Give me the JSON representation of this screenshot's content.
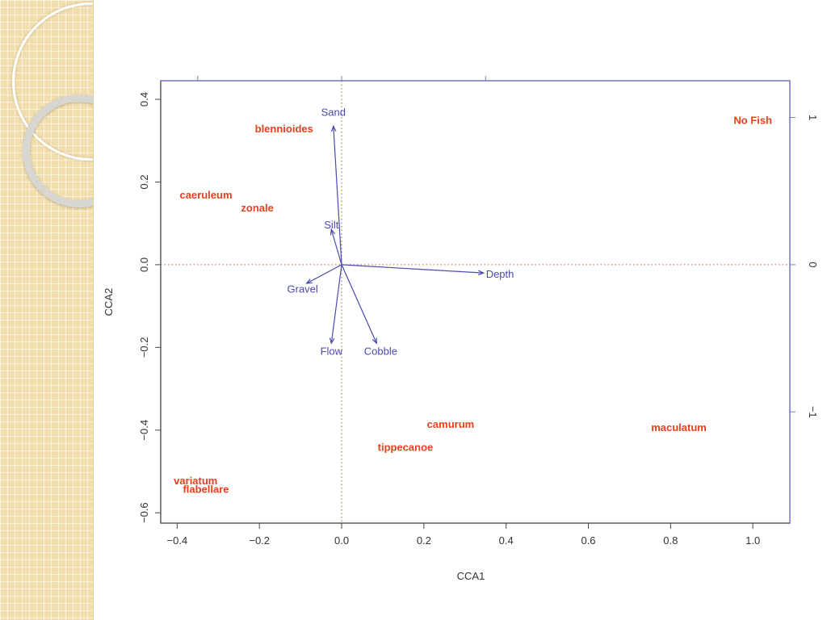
{
  "chart_data": {
    "type": "scatter",
    "xlabel": "CCA1",
    "ylabel": "CCA2",
    "xlim": [
      -0.44,
      1.09
    ],
    "ylim": [
      -0.625,
      0.445
    ],
    "x_ticks": [
      -0.4,
      -0.2,
      0.0,
      0.2,
      0.4,
      0.6,
      0.8,
      1.0
    ],
    "x_tick_labels": [
      "−0.4",
      "−0.2",
      "0.0",
      "0.2",
      "0.4",
      "0.6",
      "0.8",
      "1.0"
    ],
    "y_ticks": [
      0.4,
      0.2,
      0.0,
      -0.2,
      -0.4,
      -0.6
    ],
    "y_tick_labels": [
      "0.4",
      "0.2",
      "0.0",
      "−0.2",
      "−0.4",
      "−0.6"
    ],
    "right_axis_ticks": [
      1,
      0,
      -1
    ],
    "right_axis_tick_labels": [
      "1",
      "0",
      "−1"
    ],
    "right_axis_scale": 0.356,
    "top_axis_ticks": [
      -0.35,
      -0.0,
      0.35
    ],
    "reference_lines": {
      "x": 0,
      "y": 0,
      "style": "dotted"
    },
    "grid": false,
    "species_color": "#e8401c",
    "vector_color": "#4a4ab0",
    "species": [
      {
        "label": "blennioides",
        "x": -0.14,
        "y": 0.33
      },
      {
        "label": "caeruleum",
        "x": -0.33,
        "y": 0.17
      },
      {
        "label": "zonale",
        "x": -0.205,
        "y": 0.138
      },
      {
        "label": "No Fish",
        "x": 1.0,
        "y": 0.35
      },
      {
        "label": "camurum",
        "x": 0.265,
        "y": -0.385
      },
      {
        "label": "tippecanoe",
        "x": 0.155,
        "y": -0.44
      },
      {
        "label": "maculatum",
        "x": 0.82,
        "y": -0.393
      },
      {
        "label": "variatum",
        "x": -0.355,
        "y": -0.522
      },
      {
        "label": "flabellare",
        "x": -0.33,
        "y": -0.542
      }
    ],
    "vectors": [
      {
        "label": "Sand",
        "x": -0.02,
        "y": 0.335,
        "lx": -0.02,
        "ly": 0.37
      },
      {
        "label": "Silt",
        "x": -0.025,
        "y": 0.085,
        "lx": -0.025,
        "ly": 0.097
      },
      {
        "label": "Gravel",
        "x": -0.085,
        "y": -0.045,
        "lx": -0.095,
        "ly": -0.058
      },
      {
        "label": "Depth",
        "x": 0.345,
        "y": -0.02,
        "lx": 0.385,
        "ly": -0.022
      },
      {
        "label": "Flow",
        "x": -0.025,
        "y": -0.19,
        "lx": -0.025,
        "ly": -0.208
      },
      {
        "label": "Cobble",
        "x": 0.085,
        "y": -0.19,
        "lx": 0.095,
        "ly": -0.208
      }
    ]
  }
}
